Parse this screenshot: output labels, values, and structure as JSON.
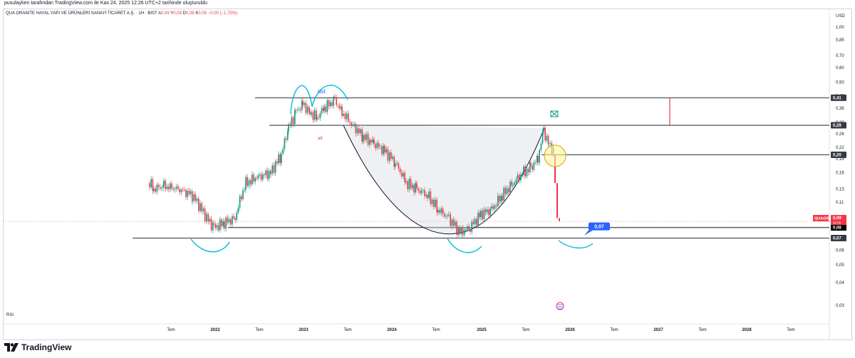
{
  "published": "pusulayken tarafından TradingView.com ile Kas 24, 2025 12:26 UTC+2 tarihinde oluşturuldu",
  "legend": {
    "name": "QUA GRANITE HAYAL YAPI VE ÜRÜNLERİ SANAYİ TİCARET A.Ş. · 1H · BIST",
    "a_label": "A",
    "a_val": "0,09",
    "y_label": "Y",
    "y_val": "0,09",
    "d_label": "D",
    "d_val": "0,08",
    "k_label": "K",
    "k_val": "0,09",
    "change": "−0,00 (−1,75%)"
  },
  "rsi_label": "RSI",
  "brand": "TradingView",
  "chart_data": {
    "type": "candlestick",
    "symbol": "QUAGR",
    "currency": "USD",
    "y_scale": "log",
    "x_ticks": [
      "Tem",
      "2022",
      "Tem",
      "2023",
      "Tem",
      "2024",
      "Tem",
      "2025",
      "Tem",
      "2026",
      "Tem",
      "2027",
      "Tem",
      "2028",
      "Tem"
    ],
    "x_ticks_bold": [
      false,
      true,
      false,
      true,
      false,
      true,
      false,
      true,
      false,
      true,
      false,
      true,
      false,
      true,
      false
    ],
    "y_ticks": [
      "1,00",
      "0,85",
      "0,70",
      "0,60",
      "0,50",
      "0,42",
      "0,36",
      "0,30",
      "0,26",
      "0,22",
      "0,19",
      "0,16",
      "0,13",
      "0,11",
      "0,09",
      "0,06",
      "0,05",
      "0,04",
      "0,03"
    ],
    "y_tick_values": [
      1.0,
      0.85,
      0.7,
      0.6,
      0.5,
      0.42,
      0.36,
      0.3,
      0.26,
      0.22,
      0.19,
      0.16,
      0.13,
      0.11,
      0.09,
      0.06,
      0.05,
      0.04,
      0.03
    ],
    "price_tags": [
      {
        "value": 0.41,
        "label": "0,41",
        "style": "dark"
      },
      {
        "value": 0.29,
        "label": "0,29",
        "style": "dark"
      },
      {
        "value": 0.2,
        "label": "0,20",
        "style": "dark"
      },
      {
        "value": 0.08,
        "label": "0,08",
        "style": "black"
      },
      {
        "value": 0.07,
        "label": "0,07",
        "style": "dark"
      }
    ],
    "last_price": {
      "symbol": "QUAGR",
      "value": "0,09",
      "sub": "4d 5h"
    },
    "horizontal_lines": [
      {
        "value": 0.41,
        "label": "0,41"
      },
      {
        "value": 0.29,
        "label": "0,29"
      },
      {
        "value": 0.2,
        "label": "0,20"
      },
      {
        "value": 0.08,
        "label": "0,08"
      },
      {
        "value": 0.07,
        "label": "0,07"
      }
    ],
    "annotations": [
      "üst",
      "alt"
    ],
    "target_callout": "0,07",
    "colors": {
      "up": "#089981",
      "down": "#f23645",
      "line": "#131722",
      "drawing": "#00bcd4",
      "callout": "#2962ff"
    }
  }
}
